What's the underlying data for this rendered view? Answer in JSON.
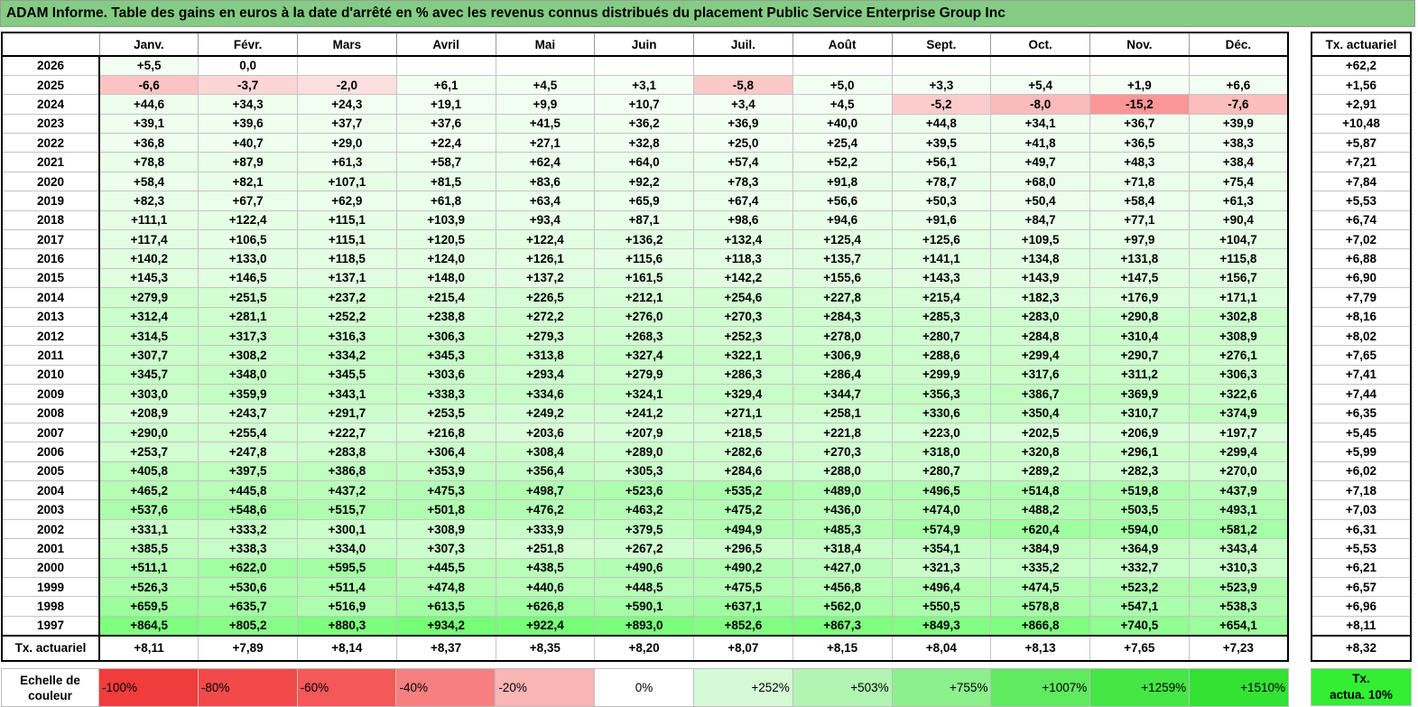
{
  "title": "ADAM Informe. Table des gains en euros à la date d'arrêté en % avec les revenus connus distribués du placement Public Service Enterprise Group Inc",
  "months": [
    "Janv.",
    "Févr.",
    "Mars",
    "Avril",
    "Mai",
    "Juin",
    "Juil.",
    "Août",
    "Sept.",
    "Oct.",
    "Nov.",
    "Déc."
  ],
  "side_header": "Tx. actuariel",
  "rows": [
    {
      "year": "2026",
      "values": [
        "+5,5",
        "0,0",
        "",
        "",
        "",
        "",
        "",
        "",
        "",
        "",
        "",
        ""
      ],
      "rate": "+62,2"
    },
    {
      "year": "2025",
      "values": [
        "-6,6",
        "-3,7",
        "-2,0",
        "+6,1",
        "+4,5",
        "+3,1",
        "-5,8",
        "+5,0",
        "+3,3",
        "+5,4",
        "+1,9",
        "+6,6"
      ],
      "rate": "+1,56"
    },
    {
      "year": "2024",
      "values": [
        "+44,6",
        "+34,3",
        "+24,3",
        "+19,1",
        "+9,9",
        "+10,7",
        "+3,4",
        "+4,5",
        "-5,2",
        "-8,0",
        "-15,2",
        "-7,6"
      ],
      "rate": "+2,91"
    },
    {
      "year": "2023",
      "values": [
        "+39,1",
        "+39,6",
        "+37,7",
        "+37,6",
        "+41,5",
        "+36,2",
        "+36,9",
        "+40,0",
        "+44,8",
        "+34,1",
        "+36,7",
        "+39,9"
      ],
      "rate": "+10,48"
    },
    {
      "year": "2022",
      "values": [
        "+36,8",
        "+40,7",
        "+29,0",
        "+22,4",
        "+27,1",
        "+32,8",
        "+25,0",
        "+25,4",
        "+39,5",
        "+41,8",
        "+36,5",
        "+38,3"
      ],
      "rate": "+5,87"
    },
    {
      "year": "2021",
      "values": [
        "+78,8",
        "+87,9",
        "+61,3",
        "+58,7",
        "+62,4",
        "+64,0",
        "+57,4",
        "+52,2",
        "+56,1",
        "+49,7",
        "+48,3",
        "+38,4"
      ],
      "rate": "+7,21"
    },
    {
      "year": "2020",
      "values": [
        "+58,4",
        "+82,1",
        "+107,1",
        "+81,5",
        "+83,6",
        "+92,2",
        "+78,3",
        "+91,8",
        "+78,7",
        "+68,0",
        "+71,8",
        "+75,4"
      ],
      "rate": "+7,84"
    },
    {
      "year": "2019",
      "values": [
        "+82,3",
        "+67,7",
        "+62,9",
        "+61,8",
        "+63,4",
        "+65,9",
        "+67,4",
        "+56,6",
        "+50,3",
        "+50,4",
        "+58,4",
        "+61,3"
      ],
      "rate": "+5,53"
    },
    {
      "year": "2018",
      "values": [
        "+111,1",
        "+122,4",
        "+115,1",
        "+103,9",
        "+93,4",
        "+87,1",
        "+98,6",
        "+94,6",
        "+91,6",
        "+84,7",
        "+77,1",
        "+90,4"
      ],
      "rate": "+6,74"
    },
    {
      "year": "2017",
      "values": [
        "+117,4",
        "+106,5",
        "+115,1",
        "+120,5",
        "+122,4",
        "+136,2",
        "+132,4",
        "+125,4",
        "+125,6",
        "+109,5",
        "+97,9",
        "+104,7"
      ],
      "rate": "+7,02"
    },
    {
      "year": "2016",
      "values": [
        "+140,2",
        "+133,0",
        "+118,5",
        "+124,0",
        "+126,1",
        "+115,6",
        "+118,3",
        "+135,7",
        "+141,1",
        "+134,8",
        "+131,8",
        "+115,8"
      ],
      "rate": "+6,88"
    },
    {
      "year": "2015",
      "values": [
        "+145,3",
        "+146,5",
        "+137,1",
        "+148,0",
        "+137,2",
        "+161,5",
        "+142,2",
        "+155,6",
        "+143,3",
        "+143,9",
        "+147,5",
        "+156,7"
      ],
      "rate": "+6,90"
    },
    {
      "year": "2014",
      "values": [
        "+279,9",
        "+251,5",
        "+237,2",
        "+215,4",
        "+226,5",
        "+212,1",
        "+254,6",
        "+227,8",
        "+215,4",
        "+182,3",
        "+176,9",
        "+171,1"
      ],
      "rate": "+7,79"
    },
    {
      "year": "2013",
      "values": [
        "+312,4",
        "+281,1",
        "+252,2",
        "+238,8",
        "+272,2",
        "+276,0",
        "+270,3",
        "+284,3",
        "+285,3",
        "+283,0",
        "+290,8",
        "+302,8"
      ],
      "rate": "+8,16"
    },
    {
      "year": "2012",
      "values": [
        "+314,5",
        "+317,3",
        "+316,3",
        "+306,3",
        "+279,3",
        "+268,3",
        "+252,3",
        "+278,0",
        "+280,7",
        "+284,8",
        "+310,4",
        "+308,9"
      ],
      "rate": "+8,02"
    },
    {
      "year": "2011",
      "values": [
        "+307,7",
        "+308,2",
        "+334,2",
        "+345,3",
        "+313,8",
        "+327,4",
        "+322,1",
        "+306,9",
        "+288,6",
        "+299,4",
        "+290,7",
        "+276,1"
      ],
      "rate": "+7,65"
    },
    {
      "year": "2010",
      "values": [
        "+345,7",
        "+348,0",
        "+345,5",
        "+303,6",
        "+293,4",
        "+279,9",
        "+286,3",
        "+286,4",
        "+299,9",
        "+317,6",
        "+311,2",
        "+306,3"
      ],
      "rate": "+7,41"
    },
    {
      "year": "2009",
      "values": [
        "+303,0",
        "+359,9",
        "+343,1",
        "+338,3",
        "+334,6",
        "+324,1",
        "+329,4",
        "+344,7",
        "+356,3",
        "+386,7",
        "+369,9",
        "+322,6"
      ],
      "rate": "+7,44"
    },
    {
      "year": "2008",
      "values": [
        "+208,9",
        "+243,7",
        "+291,7",
        "+253,5",
        "+249,2",
        "+241,2",
        "+271,1",
        "+258,1",
        "+330,6",
        "+350,4",
        "+310,7",
        "+374,9"
      ],
      "rate": "+6,35"
    },
    {
      "year": "2007",
      "values": [
        "+290,0",
        "+255,4",
        "+222,7",
        "+216,8",
        "+203,6",
        "+207,9",
        "+218,5",
        "+221,8",
        "+223,0",
        "+202,5",
        "+206,9",
        "+197,7"
      ],
      "rate": "+5,45"
    },
    {
      "year": "2006",
      "values": [
        "+253,7",
        "+247,8",
        "+283,8",
        "+306,4",
        "+308,4",
        "+289,0",
        "+282,6",
        "+270,3",
        "+318,0",
        "+320,8",
        "+296,1",
        "+299,4"
      ],
      "rate": "+5,99"
    },
    {
      "year": "2005",
      "values": [
        "+405,8",
        "+397,5",
        "+386,8",
        "+353,9",
        "+356,4",
        "+305,3",
        "+284,6",
        "+288,0",
        "+280,7",
        "+289,2",
        "+282,3",
        "+270,0"
      ],
      "rate": "+6,02"
    },
    {
      "year": "2004",
      "values": [
        "+465,2",
        "+445,8",
        "+437,2",
        "+475,3",
        "+498,7",
        "+523,6",
        "+535,2",
        "+489,0",
        "+496,5",
        "+514,8",
        "+519,8",
        "+437,9"
      ],
      "rate": "+7,18"
    },
    {
      "year": "2003",
      "values": [
        "+537,6",
        "+548,6",
        "+515,7",
        "+501,8",
        "+476,2",
        "+463,2",
        "+475,2",
        "+436,0",
        "+474,0",
        "+488,2",
        "+503,5",
        "+493,1"
      ],
      "rate": "+7,03"
    },
    {
      "year": "2002",
      "values": [
        "+331,1",
        "+333,2",
        "+300,1",
        "+308,9",
        "+333,9",
        "+379,5",
        "+494,9",
        "+485,3",
        "+574,9",
        "+620,4",
        "+594,0",
        "+581,2"
      ],
      "rate": "+6,31"
    },
    {
      "year": "2001",
      "values": [
        "+385,5",
        "+338,3",
        "+334,0",
        "+307,3",
        "+251,8",
        "+267,2",
        "+296,5",
        "+318,4",
        "+354,1",
        "+384,9",
        "+364,9",
        "+343,4"
      ],
      "rate": "+5,53"
    },
    {
      "year": "2000",
      "values": [
        "+511,1",
        "+622,0",
        "+595,5",
        "+445,5",
        "+438,5",
        "+490,6",
        "+490,2",
        "+427,0",
        "+321,3",
        "+335,2",
        "+332,7",
        "+310,3"
      ],
      "rate": "+6,21"
    },
    {
      "year": "1999",
      "values": [
        "+526,3",
        "+530,6",
        "+511,4",
        "+474,8",
        "+440,6",
        "+448,5",
        "+475,5",
        "+456,8",
        "+496,4",
        "+474,5",
        "+523,2",
        "+523,9"
      ],
      "rate": "+6,57"
    },
    {
      "year": "1998",
      "values": [
        "+659,5",
        "+635,7",
        "+516,9",
        "+613,5",
        "+626,8",
        "+590,1",
        "+637,1",
        "+562,0",
        "+550,5",
        "+578,8",
        "+547,1",
        "+538,3"
      ],
      "rate": "+6,96"
    },
    {
      "year": "1997",
      "values": [
        "+864,5",
        "+805,2",
        "+880,3",
        "+934,2",
        "+922,4",
        "+893,0",
        "+852,6",
        "+867,3",
        "+849,3",
        "+866,8",
        "+740,5",
        "+654,1"
      ],
      "rate": "+8,11"
    }
  ],
  "footer": {
    "label": "Tx. actuariel",
    "values": [
      "+8,11",
      "+7,89",
      "+8,14",
      "+8,37",
      "+8,35",
      "+8,20",
      "+8,07",
      "+8,15",
      "+8,04",
      "+8,13",
      "+7,65",
      "+7,23"
    ],
    "rate": "+8,32"
  },
  "scale": {
    "label_line1": "Echelle de",
    "label_line2": "couleur",
    "items": [
      {
        "label": "-100%",
        "color": "#f03c3c"
      },
      {
        "label": "-80%",
        "color": "#f24a4a"
      },
      {
        "label": "-60%",
        "color": "#f45858"
      },
      {
        "label": "-40%",
        "color": "#f77f7f"
      },
      {
        "label": "-20%",
        "color": "#fab5b5"
      },
      {
        "label": "0%",
        "color": "#ffffff"
      },
      {
        "label": "+252%",
        "color": "#d6fad6"
      },
      {
        "label": "+503%",
        "color": "#b2f5b2"
      },
      {
        "label": "+755%",
        "color": "#8cf08c"
      },
      {
        "label": "+1007%",
        "color": "#5fea5f"
      },
      {
        "label": "+1259%",
        "color": "#45e645"
      },
      {
        "label": "+1510%",
        "color": "#33e233"
      }
    ],
    "actuarial_line1": "Tx.",
    "actuarial_line2": "actua. 10%",
    "actuarial_color": "#33ee33"
  }
}
